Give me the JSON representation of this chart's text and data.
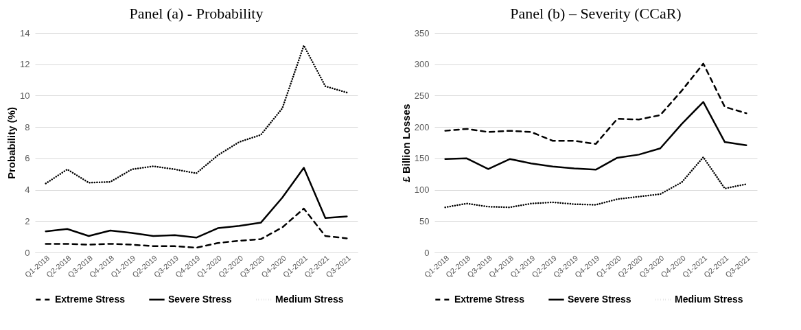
{
  "chart_data": [
    {
      "type": "line",
      "title": "Panel (a) - Probability",
      "ylabel": "Probability (%)",
      "categories": [
        "Q1-2018",
        "Q2-2018",
        "Q3-2018",
        "Q4-2018",
        "Q1-2019",
        "Q2-2019",
        "Q3-2019",
        "Q4-2019",
        "Q1-2020",
        "Q2-2020",
        "Q3-2020",
        "Q4-2020",
        "Q1-2021",
        "Q2-2021",
        "Q3-2021"
      ],
      "ylim": [
        0,
        14
      ],
      "yticks": [
        0,
        2,
        4,
        6,
        8,
        10,
        12,
        14
      ],
      "grid": "y",
      "legend": "bottom",
      "series": [
        {
          "name": "Extreme Stress",
          "color": "#000000",
          "line_style": "dashed",
          "values": [
            0.55,
            0.55,
            0.5,
            0.55,
            0.5,
            0.4,
            0.4,
            0.3,
            0.6,
            0.75,
            0.85,
            1.6,
            2.8,
            1.05,
            0.9
          ]
        },
        {
          "name": "Severe Stress",
          "color": "#000000",
          "line_style": "solid",
          "values": [
            1.35,
            1.5,
            1.05,
            1.4,
            1.25,
            1.05,
            1.1,
            0.95,
            1.55,
            1.7,
            1.9,
            3.5,
            5.4,
            2.2,
            2.3
          ]
        },
        {
          "name": "Medium Stress",
          "color": "#000000",
          "line_style": "dotted",
          "values": [
            4.4,
            5.3,
            4.45,
            4.5,
            5.3,
            5.5,
            5.3,
            5.05,
            6.2,
            7.05,
            7.5,
            9.2,
            13.2,
            10.6,
            10.2
          ]
        }
      ]
    },
    {
      "type": "line",
      "title": "Panel (b) – Severity (CCaR)",
      "ylabel": "£ Billion Losses",
      "categories": [
        "Q1-2018",
        "Q2-2018",
        "Q3-2018",
        "Q4-2018",
        "Q1-2019",
        "Q2-2019",
        "Q3-2019",
        "Q4-2019",
        "Q1-2020",
        "Q2-2020",
        "Q3-2020",
        "Q4-2020",
        "Q1-2021",
        "Q2-2021",
        "Q3-2021"
      ],
      "ylim": [
        0,
        350
      ],
      "yticks": [
        0,
        50,
        100,
        150,
        200,
        250,
        300,
        350
      ],
      "grid": "y",
      "legend": "bottom",
      "series": [
        {
          "name": "Extreme Stress",
          "color": "#000000",
          "line_style": "dashed",
          "values": [
            194,
            197,
            192,
            194,
            192,
            178,
            178,
            173,
            213,
            212,
            219,
            258,
            301,
            232,
            222
          ]
        },
        {
          "name": "Severe Stress",
          "color": "#000000",
          "line_style": "solid",
          "values": [
            149,
            150,
            133,
            149,
            142,
            137,
            134,
            132,
            151,
            156,
            166,
            205,
            240,
            176,
            171
          ]
        },
        {
          "name": "Medium Stress",
          "color": "#000000",
          "line_style": "dotted",
          "values": [
            72,
            78,
            73,
            72,
            78,
            80,
            77,
            76,
            85,
            89,
            93,
            112,
            152,
            102,
            109
          ]
        }
      ]
    }
  ]
}
